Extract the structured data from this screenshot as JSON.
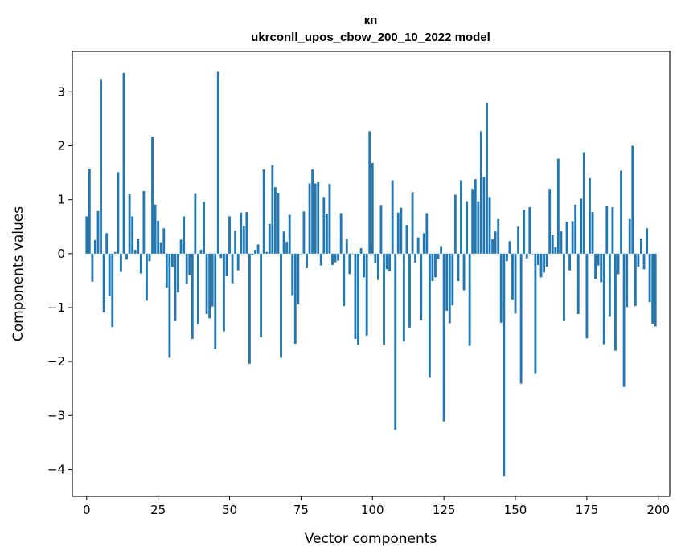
{
  "chart_data": {
    "type": "bar",
    "title": "кп",
    "subtitle": "ukrconll_upos_cbow_200_10_2022 model",
    "xlabel": "Vector components",
    "ylabel": "Components values",
    "xlim": [
      -5,
      204
    ],
    "ylim": [
      -4.5,
      3.75
    ],
    "xticks": [
      0,
      25,
      50,
      75,
      100,
      125,
      150,
      175,
      200
    ],
    "yticks": [
      -4,
      -3,
      -2,
      -1,
      0,
      1,
      2,
      3
    ],
    "bar_color": "#1f77b4",
    "grid": false,
    "legend": "none",
    "values": [
      0.69,
      1.57,
      -0.52,
      0.25,
      0.79,
      3.24,
      -1.09,
      0.38,
      -0.79,
      -1.36,
      0.03,
      1.51,
      -0.34,
      3.35,
      -0.11,
      1.11,
      0.69,
      0.07,
      0.28,
      -0.37,
      1.16,
      -0.87,
      -0.14,
      2.17,
      0.91,
      0.61,
      0.21,
      0.47,
      -0.63,
      -1.93,
      -0.25,
      -1.25,
      -0.72,
      0.26,
      0.69,
      -0.56,
      -0.4,
      -1.58,
      1.12,
      -1.31,
      0.07,
      0.96,
      -1.12,
      -1.2,
      -0.98,
      -1.77,
      3.37,
      -0.08,
      -1.44,
      -0.42,
      0.69,
      -0.55,
      0.43,
      -0.31,
      0.76,
      0.51,
      0.77,
      -2.04,
      -0.03,
      0.07,
      0.17,
      -1.55,
      1.56,
      0.03,
      0.55,
      1.64,
      1.23,
      1.13,
      -1.93,
      0.41,
      0.22,
      0.72,
      -0.77,
      -1.67,
      -0.94,
      0.0,
      0.78,
      -0.27,
      1.3,
      1.56,
      1.3,
      1.33,
      -0.22,
      1.05,
      0.74,
      1.29,
      -0.21,
      -0.16,
      -0.13,
      0.75,
      -0.97,
      0.27,
      -0.38,
      0.0,
      -1.58,
      -1.69,
      0.1,
      -0.44,
      -1.52,
      2.27,
      1.68,
      -0.18,
      -0.49,
      0.9,
      -1.69,
      -0.29,
      -0.33,
      1.36,
      -3.27,
      0.76,
      0.85,
      -1.63,
      0.53,
      -1.37,
      1.14,
      -0.17,
      0.3,
      -1.24,
      0.38,
      0.75,
      -2.3,
      -0.51,
      -0.44,
      -0.1,
      0.14,
      -3.11,
      -1.06,
      -1.29,
      -0.96,
      1.09,
      -0.51,
      1.36,
      -0.68,
      0.97,
      -1.71,
      1.2,
      1.38,
      0.97,
      2.27,
      1.42,
      2.8,
      1.05,
      0.27,
      0.41,
      0.64,
      -1.28,
      -4.13,
      -0.14,
      0.23,
      -0.85,
      -1.11,
      0.5,
      -2.41,
      0.81,
      -0.09,
      0.86,
      0.0,
      -2.23,
      -0.21,
      -0.44,
      -0.35,
      -0.24,
      1.2,
      0.35,
      0.12,
      1.76,
      0.41,
      -1.25,
      0.59,
      -0.31,
      0.6,
      0.91,
      -1.12,
      1.02,
      1.88,
      -1.57,
      1.4,
      0.77,
      -0.47,
      -0.22,
      -0.53,
      -1.68,
      0.89,
      -1.17,
      0.86,
      -1.8,
      -0.38,
      1.54,
      -2.47,
      -0.99,
      0.64,
      2.0,
      -0.97,
      -0.24,
      0.28,
      -0.29,
      0.47,
      -0.9,
      -1.3,
      -1.35
    ]
  }
}
